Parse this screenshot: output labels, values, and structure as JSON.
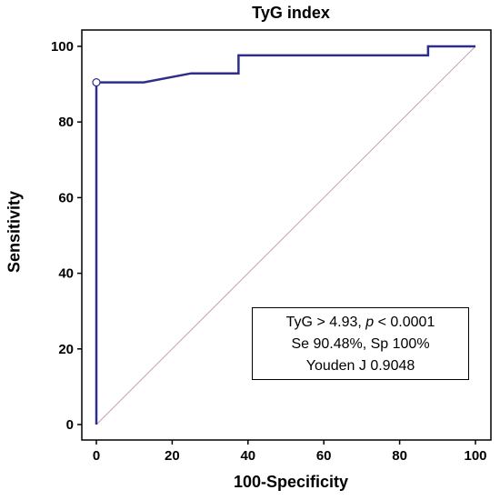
{
  "chart_data": {
    "type": "line",
    "title": "TyG index",
    "xlabel": "100-Specificity",
    "ylabel": "Sensitivity",
    "xlim": [
      0,
      100
    ],
    "ylim": [
      0,
      100
    ],
    "x_ticks": [
      "0",
      "20",
      "40",
      "60",
      "80",
      "100"
    ],
    "y_ticks": [
      "0",
      "20",
      "40",
      "60",
      "80",
      "100"
    ],
    "grid": false,
    "series": [
      {
        "type": "step",
        "color": "#2e2e8a",
        "x": [
          0,
          0,
          12.5,
          25,
          37.5,
          37.5,
          87.5,
          87.5,
          100
        ],
        "y": [
          0,
          90.48,
          90.48,
          92.86,
          92.86,
          97.62,
          97.62,
          100,
          100
        ]
      },
      {
        "type": "reference-diagonal",
        "color": "#c9a0a8",
        "x": [
          0,
          100
        ],
        "y": [
          0,
          100
        ]
      }
    ],
    "optimal_point": {
      "x": 0,
      "y": 90.48
    },
    "annotation": {
      "line1_prefix": "TyG > 4.93, ",
      "line1_p": "p",
      "line1_suffix": " < 0.0001",
      "line2": "Se 90.48%, Sp 100%",
      "line3": "Youden J 0.9048"
    }
  }
}
